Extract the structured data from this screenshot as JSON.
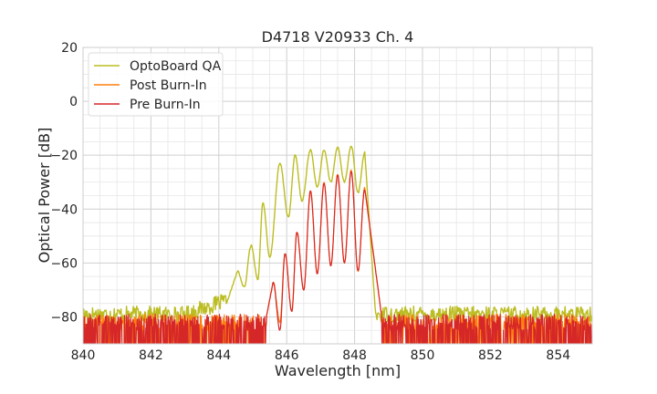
{
  "chart_data": {
    "type": "line",
    "title": "D4718 V20933 Ch. 4",
    "xlabel": "Wavelength [nm]",
    "ylabel": "Optical Power [dB]",
    "xlim": [
      840,
      855
    ],
    "ylim": [
      -90,
      20
    ],
    "xticks": [
      840,
      842,
      844,
      846,
      848,
      850,
      852,
      854
    ],
    "yticks": [
      20,
      0,
      -20,
      -40,
      -60,
      -80
    ],
    "xtick_labels": [
      "840",
      "842",
      "844",
      "846",
      "848",
      "850",
      "852",
      "854"
    ],
    "ytick_labels": [
      "20",
      "0",
      "−20",
      "−40",
      "−60",
      "−80"
    ],
    "grid": true,
    "legend_position": "top-left",
    "series": [
      {
        "name": "OptoBoard QA",
        "color": "#bcbd22",
        "peaks": [
          [
            844.55,
            -63
          ],
          [
            844.95,
            -53.5
          ],
          [
            845.3,
            -37.5
          ],
          [
            845.8,
            -23
          ],
          [
            846.25,
            -20
          ],
          [
            846.7,
            -18
          ],
          [
            847.1,
            -18
          ],
          [
            847.5,
            -17
          ],
          [
            847.9,
            -16.5
          ],
          [
            848.3,
            -19
          ]
        ],
        "troughs": [
          [
            844.75,
            -69
          ],
          [
            845.15,
            -66
          ],
          [
            845.5,
            -58
          ],
          [
            846.05,
            -43
          ],
          [
            846.45,
            -37
          ],
          [
            846.9,
            -32
          ],
          [
            847.3,
            -30
          ],
          [
            847.7,
            -30
          ],
          [
            848.1,
            -34
          ]
        ],
        "noise_floor": -76,
        "band": [
          844.2,
          848.6
        ]
      },
      {
        "name": "Post Burn-In",
        "color": "#ff7f0e",
        "peaks": [
          [
            845.6,
            -67
          ],
          [
            845.95,
            -56.5
          ],
          [
            846.3,
            -48.5
          ],
          [
            846.7,
            -33
          ],
          [
            847.1,
            -30
          ],
          [
            847.5,
            -27
          ],
          [
            847.9,
            -25.5
          ],
          [
            848.3,
            -32
          ]
        ],
        "troughs": [
          [
            845.8,
            -82
          ],
          [
            846.15,
            -78
          ],
          [
            846.5,
            -70
          ],
          [
            846.9,
            -64
          ],
          [
            847.3,
            -61
          ],
          [
            847.7,
            -60
          ],
          [
            848.1,
            -63
          ]
        ],
        "noise_floor": -80,
        "band": [
          845.4,
          848.8
        ]
      },
      {
        "name": "Pre Burn-In",
        "color": "#d62728",
        "peaks": [
          [
            845.6,
            -67
          ],
          [
            845.95,
            -56.5
          ],
          [
            846.3,
            -48.5
          ],
          [
            846.7,
            -33.5
          ],
          [
            847.1,
            -30.5
          ],
          [
            847.5,
            -27.5
          ],
          [
            847.9,
            -26
          ],
          [
            848.3,
            -32.5
          ]
        ],
        "troughs": [
          [
            845.8,
            -85
          ],
          [
            846.15,
            -78
          ],
          [
            846.5,
            -70
          ],
          [
            846.9,
            -64
          ],
          [
            847.3,
            -61
          ],
          [
            847.7,
            -60
          ],
          [
            848.1,
            -63
          ]
        ],
        "noise_floor": -80,
        "band": [
          845.4,
          848.8
        ]
      }
    ]
  }
}
